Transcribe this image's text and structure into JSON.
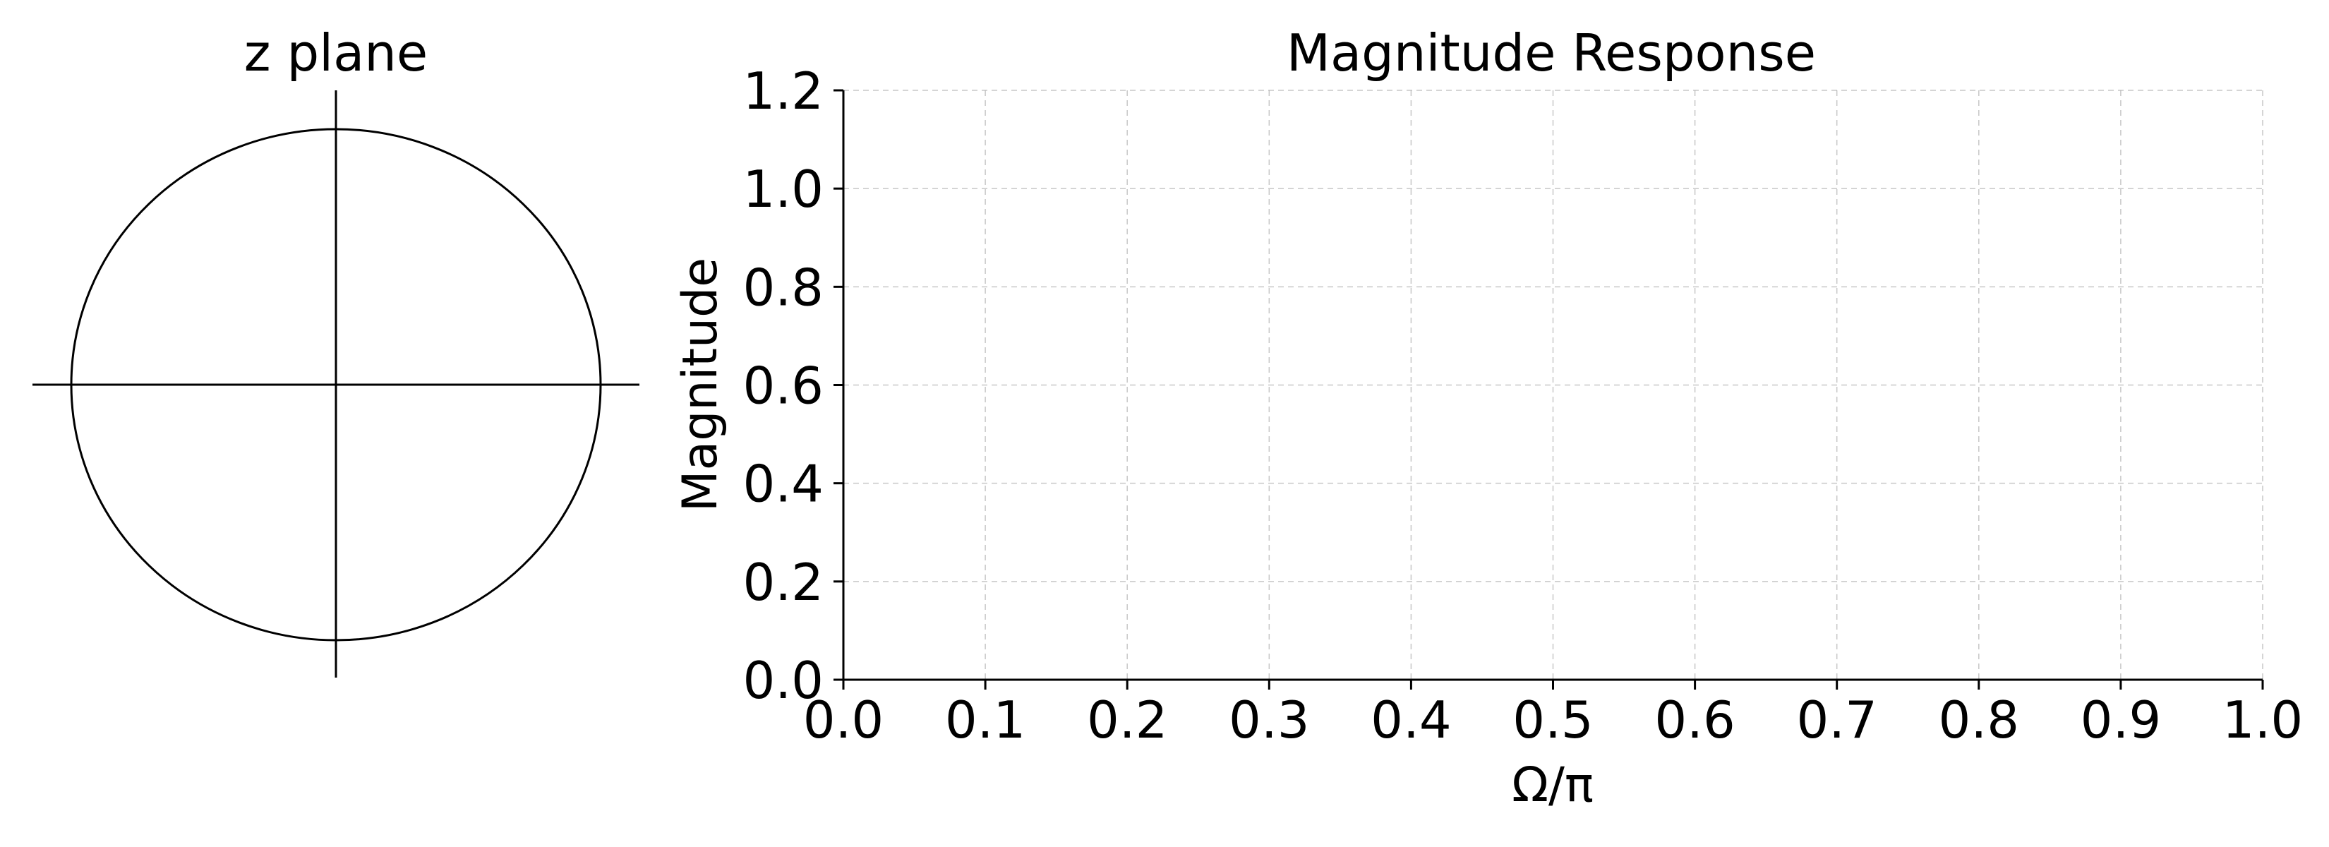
{
  "chart_data": [
    {
      "type": "scatter",
      "title": "z plane",
      "xlabel": "",
      "ylabel": "",
      "unit_circle": true,
      "axes_cross": true,
      "poles": [],
      "zeros": []
    },
    {
      "type": "line",
      "title": "Magnitude Response",
      "xlabel": "Ω/π",
      "ylabel": "Magnitude",
      "xlim": [
        0.0,
        1.0
      ],
      "ylim": [
        0.0,
        1.2
      ],
      "xticks": [
        "0.0",
        "0.1",
        "0.2",
        "0.3",
        "0.4",
        "0.5",
        "0.6",
        "0.7",
        "0.8",
        "0.9",
        "1.0"
      ],
      "yticks": [
        "0.0",
        "0.2",
        "0.4",
        "0.6",
        "0.8",
        "1.0",
        "1.2"
      ],
      "grid": true,
      "series": []
    }
  ]
}
